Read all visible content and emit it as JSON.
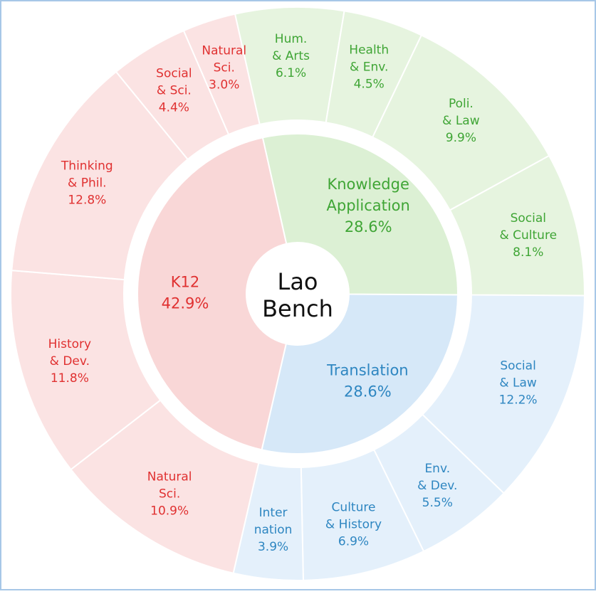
{
  "chart_data": {
    "type": "sunburst",
    "center_label": [
      "Lao",
      "Bench"
    ],
    "categories": [
      {
        "name": "Translation",
        "percent": 28.6,
        "value_label": "28.6%",
        "label_lines": [
          "Translation"
        ],
        "color": "#2e86c1",
        "inner_fill": "#d6e8f8",
        "outer_fill": "#e4f0fb",
        "children": [
          {
            "label_lines": [
              "Social",
              "& Law"
            ],
            "percent": 12.2,
            "value_label": "12.2%"
          },
          {
            "label_lines": [
              "Env.",
              "& Dev."
            ],
            "percent": 5.5,
            "value_label": "5.5%"
          },
          {
            "label_lines": [
              "Culture",
              "& History"
            ],
            "percent": 6.9,
            "value_label": "6.9%"
          },
          {
            "label_lines": [
              "Inter",
              "nation"
            ],
            "percent": 3.9,
            "value_label": "3.9%"
          }
        ]
      },
      {
        "name": "K12",
        "percent": 42.9,
        "value_label": "42.9%",
        "label_lines": [
          "K12"
        ],
        "color": "#e03131",
        "inner_fill": "#f9d7d7",
        "outer_fill": "#fbe3e3",
        "children": [
          {
            "label_lines": [
              "Natural",
              "Sci."
            ],
            "percent": 10.9,
            "value_label": "10.9%"
          },
          {
            "label_lines": [
              "History",
              "& Dev."
            ],
            "percent": 11.8,
            "value_label": "11.8%"
          },
          {
            "label_lines": [
              "Thinking",
              "& Phil."
            ],
            "percent": 12.8,
            "value_label": "12.8%"
          },
          {
            "label_lines": [
              "Social",
              "& Sci."
            ],
            "percent": 4.4,
            "value_label": "4.4%"
          },
          {
            "label_lines": [
              "Natural",
              "Sci."
            ],
            "percent": 3.0,
            "value_label": "3.0%"
          }
        ]
      },
      {
        "name": "Knowledge Application",
        "percent": 28.6,
        "value_label": "28.6%",
        "label_lines": [
          "Knowledge",
          "Application"
        ],
        "color": "#3fa535",
        "inner_fill": "#dcf0d4",
        "outer_fill": "#e6f4df",
        "children": [
          {
            "label_lines": [
              "Hum.",
              "& Arts"
            ],
            "percent": 6.1,
            "value_label": "6.1%"
          },
          {
            "label_lines": [
              "Health",
              "& Env."
            ],
            "percent": 4.5,
            "value_label": "4.5%"
          },
          {
            "label_lines": [
              "Poli.",
              "& Law"
            ],
            "percent": 9.9,
            "value_label": "9.9%"
          },
          {
            "label_lines": [
              "Social",
              "& Culture"
            ],
            "percent": 8.1,
            "value_label": "8.1%"
          }
        ]
      }
    ]
  }
}
